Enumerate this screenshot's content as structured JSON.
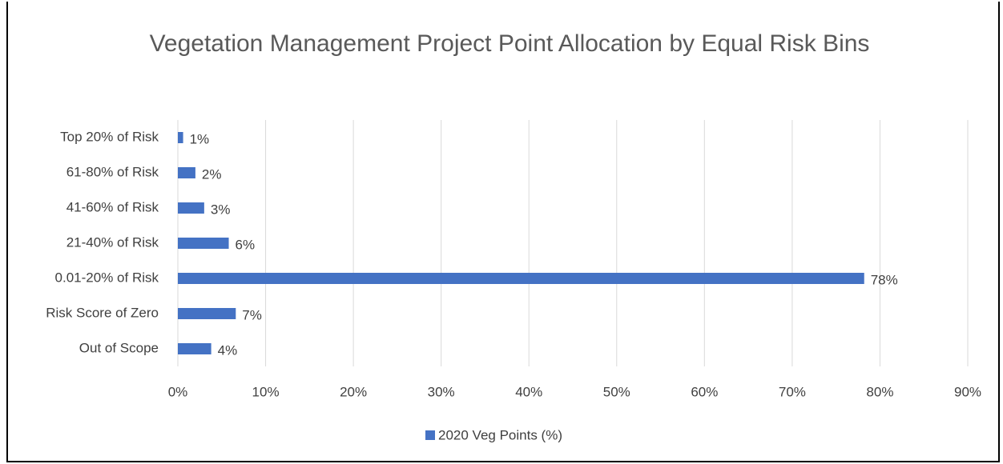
{
  "chart_data": {
    "type": "hbar",
    "title": "Vegetation Management Project Point Allocation by Equal Risk Bins",
    "categories": [
      "Top 20% of Risk",
      "61-80% of Risk",
      "41-60% of Risk",
      "21-40% of Risk",
      "0.01-20% of Risk",
      "Risk Score of Zero",
      "Out of Scope"
    ],
    "series": [
      {
        "name": "2020 Veg Points (%)",
        "color": "#4472c4",
        "values": [
          0.6,
          2.0,
          3.0,
          5.8,
          78.2,
          6.6,
          3.8
        ],
        "value_labels": [
          "1%",
          "2%",
          "3%",
          "6%",
          "78%",
          "7%",
          "4%"
        ]
      }
    ],
    "xlim": [
      0,
      90
    ],
    "xticks": [
      {
        "value": 0,
        "label": "0%"
      },
      {
        "value": 10,
        "label": "10%"
      },
      {
        "value": 20,
        "label": "20%"
      },
      {
        "value": 30,
        "label": "30%"
      },
      {
        "value": 40,
        "label": "40%"
      },
      {
        "value": 50,
        "label": "50%"
      },
      {
        "value": 60,
        "label": "60%"
      },
      {
        "value": 70,
        "label": "70%"
      },
      {
        "value": 80,
        "label": "80%"
      },
      {
        "value": 90,
        "label": "90%"
      }
    ],
    "grid": true,
    "legend": "bottom"
  }
}
